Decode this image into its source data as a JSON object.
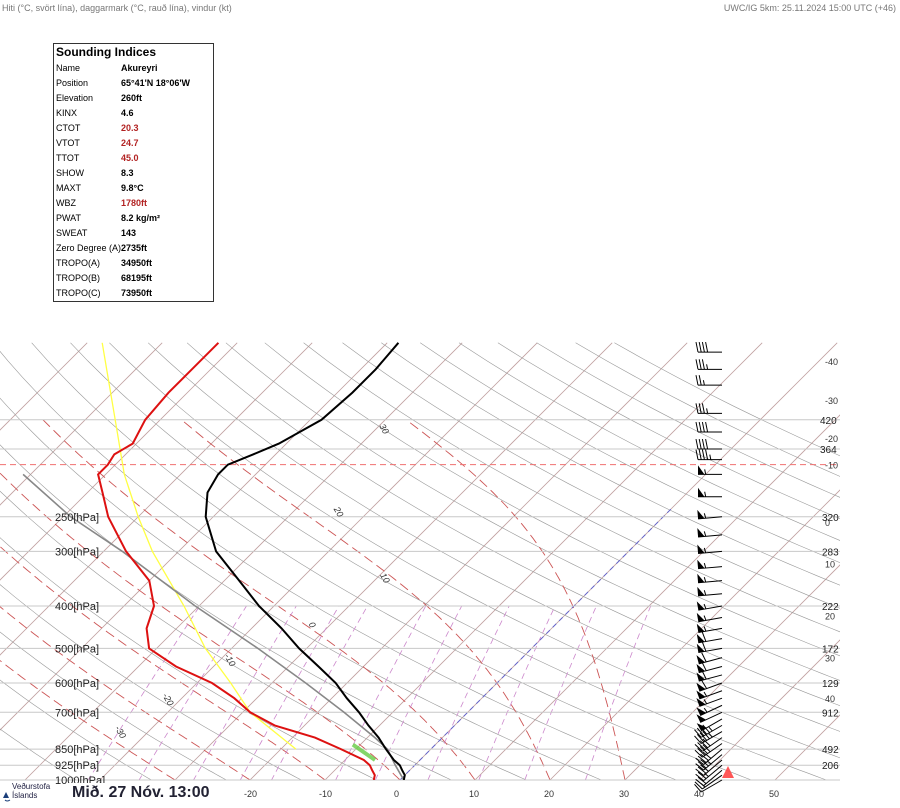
{
  "header": {
    "left": "Hiti (°C, svört lína), daggarmark (°C, rauð lína), vindur (kt)",
    "right": "UWC/IG 5km: 25.11.2024 15:00 UTC (+46)"
  },
  "indices": {
    "title": "Sounding Indices",
    "rows": [
      {
        "key": "Name",
        "value": "Akureyri"
      },
      {
        "key": "Position",
        "value": "65°41'N 18°06'W"
      },
      {
        "key": "Elevation",
        "value": "260ft"
      },
      {
        "key": "KINX",
        "value": "4.6"
      },
      {
        "key": "CTOT",
        "value": "20.3",
        "highlight": true
      },
      {
        "key": "VTOT",
        "value": "24.7",
        "highlight": true
      },
      {
        "key": "TTOT",
        "value": "45.0",
        "highlight": true
      },
      {
        "key": "SHOW",
        "value": "8.3"
      },
      {
        "key": "MAXT",
        "value": "9.8°C"
      },
      {
        "key": "WBZ",
        "value": "1780ft",
        "highlight": true
      },
      {
        "key": "PWAT",
        "value": "8.2 kg/m²"
      },
      {
        "key": "SWEAT",
        "value": "143"
      },
      {
        "key": "Zero Degree (A)",
        "value": "2735ft"
      },
      {
        "key": "TROPO(A)",
        "value": "34950ft"
      },
      {
        "key": "TROPO(B)",
        "value": "68195ft"
      },
      {
        "key": "TROPO(C)",
        "value": "73950ft"
      }
    ]
  },
  "footer": {
    "logo_line1": "Veðurstofa",
    "logo_line2": "Íslands",
    "datetime": "Mið. 27 Nóv. 13:00"
  },
  "chart_data": {
    "type": "line",
    "chart_kind": "skew-T log-p sounding",
    "colors": {
      "temperature": "#000000",
      "dewpoint": "#dd1111",
      "parcel": "#888888",
      "wet_bulb": "#ffff44",
      "tropopause_line": "#f07070",
      "freezing_line": "#6666cc",
      "isotherm": "#c0a0a0",
      "dry_adiabat": "#999999",
      "moist_adiabat": "#cc5555",
      "mixing_ratio": "#cc88cc",
      "wind_barb": "#000000"
    },
    "pressure_levels": [
      {
        "p": 250,
        "label": "250[hPa]",
        "height_ft": "320"
      },
      {
        "p": 300,
        "label": "300[hPa]",
        "height_ft": "283"
      },
      {
        "p": 400,
        "label": "400[hPa]",
        "height_ft": "222"
      },
      {
        "p": 500,
        "label": "500[hPa]",
        "height_ft": "172"
      },
      {
        "p": 600,
        "label": "600[hPa]",
        "height_ft": "129"
      },
      {
        "p": 700,
        "label": "700[hPa]",
        "height_ft": "912"
      },
      {
        "p": 850,
        "label": "850[hPa]",
        "height_ft": "492"
      },
      {
        "p": 925,
        "label": "925[hPa]",
        "height_ft": "206"
      },
      {
        "p": 1000,
        "label": "1000[hPa]",
        "height_ft": ""
      }
    ],
    "upper_height_labels": [
      {
        "p": 150,
        "label": "420"
      },
      {
        "p": 175,
        "label": "364"
      }
    ],
    "right_temp_labels": [
      {
        "p": 110,
        "label": "-40"
      },
      {
        "p": 135,
        "label": "-30"
      },
      {
        "p": 165,
        "label": "-20"
      },
      {
        "p": 190,
        "label": "-10"
      },
      {
        "p": 257,
        "label": "0"
      },
      {
        "p": 320,
        "label": "10"
      },
      {
        "p": 420,
        "label": "20"
      },
      {
        "p": 525,
        "label": "30"
      },
      {
        "p": 650,
        "label": "40"
      }
    ],
    "bottom_temp_labels": [
      "-20",
      "-10",
      "0",
      "10",
      "20",
      "30",
      "40",
      "50"
    ],
    "adiabat_labels": [
      {
        "label": "30",
        "p": 155,
        "t": -50
      },
      {
        "label": "20",
        "p": 240,
        "t": -45
      },
      {
        "label": "10",
        "p": 340,
        "t": -30
      },
      {
        "label": "0",
        "p": 440,
        "t": -33
      },
      {
        "label": "-10",
        "p": 520,
        "t": -40
      },
      {
        "label": "-20",
        "p": 640,
        "t": -43
      },
      {
        "label": "-30",
        "p": 760,
        "t": -45
      }
    ],
    "tropopause_p": 190,
    "temperature": [
      [
        1000,
        0.5
      ],
      [
        975,
        0.0
      ],
      [
        950,
        -1.0
      ],
      [
        925,
        -2.0
      ],
      [
        900,
        -3.5
      ],
      [
        850,
        -6.0
      ],
      [
        800,
        -8.5
      ],
      [
        750,
        -11.5
      ],
      [
        700,
        -14.5
      ],
      [
        650,
        -18.0
      ],
      [
        600,
        -21.5
      ],
      [
        550,
        -26.0
      ],
      [
        500,
        -31.0
      ],
      [
        450,
        -36.0
      ],
      [
        400,
        -42.0
      ],
      [
        350,
        -48.0
      ],
      [
        300,
        -55.0
      ],
      [
        250,
        -61.0
      ],
      [
        220,
        -64.0
      ],
      [
        200,
        -65.0
      ],
      [
        190,
        -65.0
      ],
      [
        180,
        -63.0
      ],
      [
        170,
        -61.0
      ],
      [
        150,
        -58.5
      ],
      [
        130,
        -58.0
      ],
      [
        115,
        -58.0
      ],
      [
        100,
        -58.5
      ]
    ],
    "dewpoint": [
      [
        1000,
        -3.5
      ],
      [
        975,
        -4.0
      ],
      [
        950,
        -5.0
      ],
      [
        925,
        -6.0
      ],
      [
        900,
        -7.5
      ],
      [
        850,
        -12.0
      ],
      [
        800,
        -17.0
      ],
      [
        750,
        -24.0
      ],
      [
        700,
        -29.0
      ],
      [
        650,
        -33.0
      ],
      [
        600,
        -38.0
      ],
      [
        550,
        -45.0
      ],
      [
        500,
        -51.0
      ],
      [
        450,
        -54.0
      ],
      [
        400,
        -56.0
      ],
      [
        350,
        -60.0
      ],
      [
        300,
        -67.0
      ],
      [
        250,
        -74.0
      ],
      [
        220,
        -78.0
      ],
      [
        200,
        -81.0
      ],
      [
        190,
        -81.0
      ],
      [
        180,
        -81.5
      ],
      [
        170,
        -80.5
      ],
      [
        150,
        -82.0
      ],
      [
        130,
        -82.5
      ],
      [
        115,
        -82.5
      ],
      [
        100,
        -82.5
      ]
    ],
    "parcel": [
      [
        1000,
        0.5
      ],
      [
        925,
        -2.6
      ],
      [
        850,
        -5.8
      ],
      [
        800,
        -9.0
      ],
      [
        700,
        -16.5
      ],
      [
        600,
        -25.5
      ],
      [
        500,
        -36.5
      ],
      [
        400,
        -50.5
      ],
      [
        300,
        -67.5
      ],
      [
        250,
        -79.0
      ],
      [
        200,
        -91.0
      ]
    ],
    "wet_bulb": [
      [
        850,
        -18.0
      ],
      [
        700,
        -29.0
      ],
      [
        600,
        -35.5
      ],
      [
        500,
        -43.5
      ],
      [
        400,
        -52.0
      ],
      [
        300,
        -63.5
      ],
      [
        250,
        -70.0
      ],
      [
        200,
        -77.5
      ],
      [
        150,
        -86.0
      ],
      [
        100,
        -98.0
      ]
    ],
    "isotherms": [
      -100,
      -90,
      -80,
      -70,
      -60,
      -50,
      -40,
      -30,
      -20,
      -10,
      0,
      10,
      20,
      30,
      40,
      50
    ],
    "dry_adiabats_theta_K": [
      230,
      240,
      250,
      260,
      270,
      280,
      290,
      300,
      310,
      320,
      330,
      340,
      350,
      360,
      370,
      380,
      390,
      400,
      410,
      420,
      430,
      440,
      450,
      460,
      470
    ],
    "moist_adiabats_C": [
      -30,
      -20,
      -10,
      0,
      10,
      20,
      30
    ],
    "mixing_ratios_gkg": [
      0.1,
      0.2,
      0.4,
      0.7,
      1,
      2,
      3,
      5,
      8,
      12,
      20
    ],
    "wind_kt": [
      [
        1000,
        240,
        10
      ],
      [
        975,
        235,
        15
      ],
      [
        950,
        230,
        20
      ],
      [
        925,
        230,
        25
      ],
      [
        900,
        230,
        30
      ],
      [
        875,
        230,
        35
      ],
      [
        850,
        230,
        40
      ],
      [
        825,
        235,
        40
      ],
      [
        800,
        235,
        40
      ],
      [
        775,
        240,
        45
      ],
      [
        750,
        240,
        45
      ],
      [
        725,
        240,
        50
      ],
      [
        700,
        245,
        50
      ],
      [
        675,
        245,
        55
      ],
      [
        650,
        250,
        55
      ],
      [
        625,
        250,
        55
      ],
      [
        600,
        250,
        60
      ],
      [
        575,
        255,
        60
      ],
      [
        550,
        255,
        60
      ],
      [
        525,
        255,
        60
      ],
      [
        500,
        260,
        60
      ],
      [
        475,
        260,
        60
      ],
      [
        450,
        260,
        55
      ],
      [
        425,
        260,
        55
      ],
      [
        400,
        260,
        55
      ],
      [
        375,
        265,
        55
      ],
      [
        350,
        265,
        55
      ],
      [
        325,
        265,
        55
      ],
      [
        300,
        265,
        55
      ],
      [
        275,
        265,
        55
      ],
      [
        250,
        265,
        55
      ],
      [
        225,
        270,
        55
      ],
      [
        200,
        270,
        55
      ],
      [
        185,
        270,
        45
      ],
      [
        175,
        270,
        40
      ],
      [
        160,
        270,
        40
      ],
      [
        145,
        270,
        35
      ],
      [
        125,
        270,
        25
      ],
      [
        115,
        270,
        35
      ],
      [
        105,
        270,
        40
      ]
    ]
  }
}
